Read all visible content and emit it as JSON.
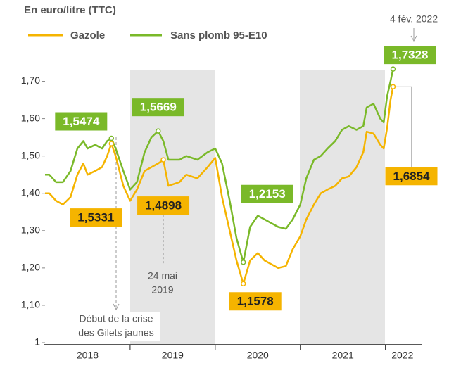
{
  "chart_data": {
    "type": "line",
    "title": "En euro/litre (TTC)",
    "x": [
      2018.0,
      2018.05,
      2018.13,
      2018.21,
      2018.3,
      2018.38,
      2018.45,
      2018.5,
      2018.59,
      2018.67,
      2018.73,
      2018.78,
      2018.83,
      2018.92,
      2019.0,
      2019.08,
      2019.17,
      2019.25,
      2019.33,
      2019.39,
      2019.45,
      2019.58,
      2019.66,
      2019.79,
      2019.91,
      2020.0,
      2020.08,
      2020.17,
      2020.25,
      2020.33,
      2020.41,
      2020.5,
      2020.58,
      2020.66,
      2020.74,
      2020.83,
      2020.91,
      2021.0,
      2021.07,
      2021.16,
      2021.24,
      2021.32,
      2021.41,
      2021.49,
      2021.57,
      2021.66,
      2021.74,
      2021.78,
      2021.86,
      2021.94,
      2021.98,
      2022.02,
      2022.06,
      2022.09
    ],
    "series": [
      {
        "name": "Gazole",
        "color": "#f5b400",
        "values": [
          1.4,
          1.4,
          1.38,
          1.37,
          1.39,
          1.45,
          1.48,
          1.45,
          1.46,
          1.47,
          1.5,
          1.5331,
          1.5,
          1.42,
          1.38,
          1.41,
          1.46,
          1.47,
          1.48,
          1.4898,
          1.42,
          1.43,
          1.45,
          1.44,
          1.47,
          1.495,
          1.39,
          1.3,
          1.22,
          1.1578,
          1.22,
          1.24,
          1.22,
          1.21,
          1.2,
          1.205,
          1.25,
          1.285,
          1.33,
          1.37,
          1.4,
          1.41,
          1.42,
          1.44,
          1.445,
          1.47,
          1.51,
          1.565,
          1.56,
          1.53,
          1.52,
          1.575,
          1.65,
          1.6854
        ],
        "value_labels": [
          null,
          null,
          null,
          null,
          null,
          null,
          null,
          null,
          null,
          null,
          null,
          "1,5331",
          null,
          null,
          null,
          null,
          null,
          null,
          null,
          "1,4898",
          null,
          null,
          null,
          null,
          null,
          null,
          null,
          null,
          null,
          "1,1578",
          null,
          null,
          null,
          null,
          null,
          null,
          null,
          null,
          null,
          null,
          null,
          null,
          null,
          null,
          null,
          null,
          null,
          null,
          null,
          null,
          null,
          null,
          null,
          "1,6854"
        ]
      },
      {
        "name": "Sans plomb 95-E10",
        "color": "#7ab929",
        "values": [
          1.45,
          1.45,
          1.43,
          1.43,
          1.46,
          1.52,
          1.54,
          1.52,
          1.53,
          1.52,
          1.54,
          1.5474,
          1.52,
          1.46,
          1.41,
          1.43,
          1.51,
          1.55,
          1.5669,
          1.54,
          1.49,
          1.49,
          1.5,
          1.49,
          1.51,
          1.52,
          1.48,
          1.38,
          1.28,
          1.2153,
          1.31,
          1.34,
          1.33,
          1.32,
          1.31,
          1.305,
          1.33,
          1.37,
          1.44,
          1.49,
          1.5,
          1.52,
          1.54,
          1.57,
          1.58,
          1.57,
          1.58,
          1.63,
          1.64,
          1.6,
          1.59,
          1.66,
          1.7,
          1.7328
        ],
        "value_labels": [
          null,
          null,
          null,
          null,
          null,
          null,
          null,
          null,
          null,
          null,
          null,
          "1,5474",
          null,
          null,
          null,
          null,
          null,
          null,
          "1,5669",
          null,
          null,
          null,
          null,
          null,
          null,
          null,
          null,
          null,
          null,
          "1,2153",
          null,
          null,
          null,
          null,
          null,
          null,
          null,
          null,
          null,
          null,
          null,
          null,
          null,
          null,
          null,
          null,
          null,
          null,
          null,
          null,
          null,
          null,
          null,
          "1,7328"
        ]
      }
    ],
    "xlim": [
      2018,
      2022.4
    ],
    "xticks": [
      2018,
      2019,
      2020,
      2021,
      2022
    ],
    "ylim": [
      1,
      1.75
    ],
    "yticks": [
      1,
      {
        "value": 1.1,
        "label": "1,10"
      },
      {
        "value": 1.2,
        "label": "1,20"
      },
      {
        "value": 1.3,
        "label": "1,30"
      },
      {
        "value": 1.4,
        "label": "1,40"
      },
      {
        "value": 1.5,
        "label": "1,50"
      },
      {
        "value": 1.6,
        "label": "1,60"
      },
      {
        "value": 1.7,
        "label": "1,70"
      }
    ],
    "grid": false,
    "annotations": [
      "4 fév. 2022",
      "24 mai",
      "2019",
      "Début de la crise",
      "des Gilets jaunes"
    ]
  }
}
